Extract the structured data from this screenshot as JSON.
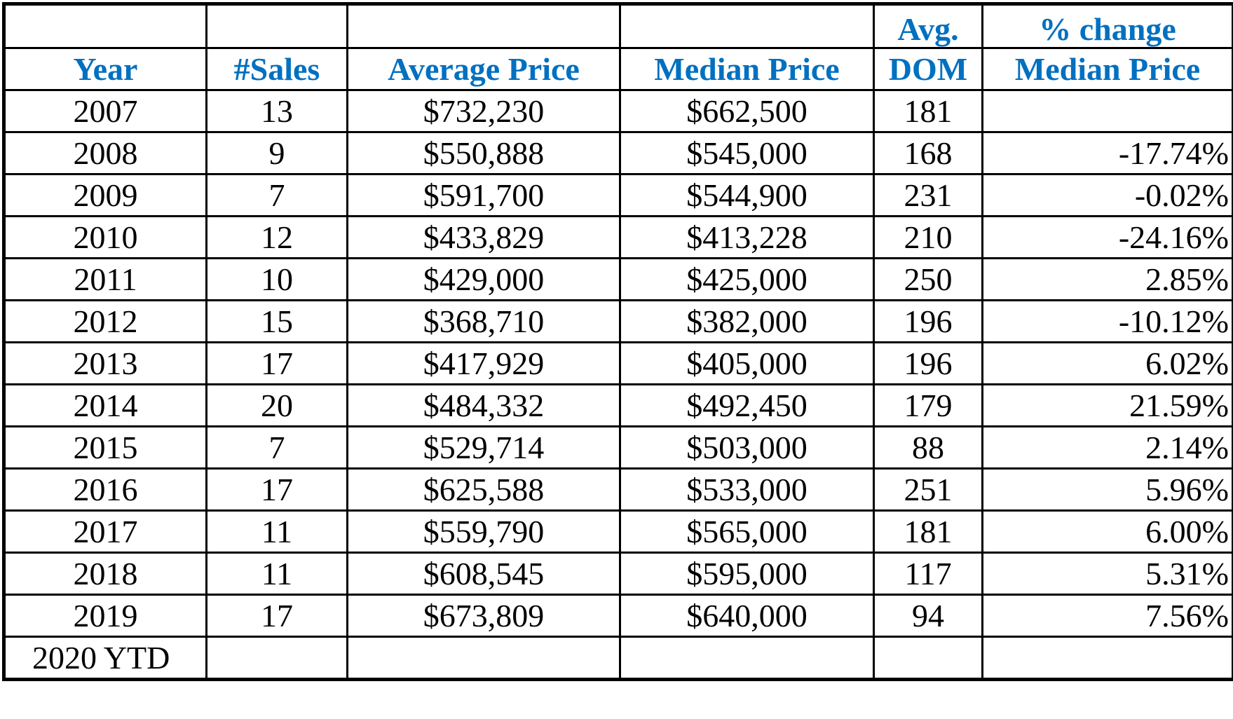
{
  "columns": [
    {
      "top": "",
      "bottom": "Year"
    },
    {
      "top": "",
      "bottom": "#Sales"
    },
    {
      "top": "",
      "bottom": "Average Price"
    },
    {
      "top": "",
      "bottom": "Median Price"
    },
    {
      "top": "Avg.",
      "bottom": "DOM"
    },
    {
      "top": "% change",
      "bottom": "Median Price"
    }
  ],
  "rows": [
    {
      "year": "2007",
      "sales": "13",
      "avg_price": "$732,230",
      "median_price": "$662,500",
      "dom": "181",
      "pct_change": ""
    },
    {
      "year": "2008",
      "sales": "9",
      "avg_price": "$550,888",
      "median_price": "$545,000",
      "dom": "168",
      "pct_change": "-17.74%"
    },
    {
      "year": "2009",
      "sales": "7",
      "avg_price": "$591,700",
      "median_price": "$544,900",
      "dom": "231",
      "pct_change": "-0.02%"
    },
    {
      "year": "2010",
      "sales": "12",
      "avg_price": "$433,829",
      "median_price": "$413,228",
      "dom": "210",
      "pct_change": "-24.16%"
    },
    {
      "year": "2011",
      "sales": "10",
      "avg_price": "$429,000",
      "median_price": "$425,000",
      "dom": "250",
      "pct_change": "2.85%"
    },
    {
      "year": "2012",
      "sales": "15",
      "avg_price": "$368,710",
      "median_price": "$382,000",
      "dom": "196",
      "pct_change": "-10.12%"
    },
    {
      "year": "2013",
      "sales": "17",
      "avg_price": "$417,929",
      "median_price": "$405,000",
      "dom": "196",
      "pct_change": "6.02%"
    },
    {
      "year": "2014",
      "sales": "20",
      "avg_price": "$484,332",
      "median_price": "$492,450",
      "dom": "179",
      "pct_change": "21.59%"
    },
    {
      "year": "2015",
      "sales": "7",
      "avg_price": "$529,714",
      "median_price": "$503,000",
      "dom": "88",
      "pct_change": "2.14%"
    },
    {
      "year": "2016",
      "sales": "17",
      "avg_price": "$625,588",
      "median_price": "$533,000",
      "dom": "251",
      "pct_change": "5.96%"
    },
    {
      "year": "2017",
      "sales": "11",
      "avg_price": "$559,790",
      "median_price": "$565,000",
      "dom": "181",
      "pct_change": "6.00%"
    },
    {
      "year": "2018",
      "sales": "11",
      "avg_price": "$608,545",
      "median_price": "$595,000",
      "dom": "117",
      "pct_change": "5.31%"
    },
    {
      "year": "2019",
      "sales": "17",
      "avg_price": "$673,809",
      "median_price": "$640,000",
      "dom": "94",
      "pct_change": "7.56%"
    },
    {
      "year": "2020 YTD",
      "sales": "",
      "avg_price": "",
      "median_price": "",
      "dom": "",
      "pct_change": ""
    }
  ],
  "colors": {
    "header_text": "#0070c0",
    "body_text": "#000000",
    "border": "#000000"
  }
}
